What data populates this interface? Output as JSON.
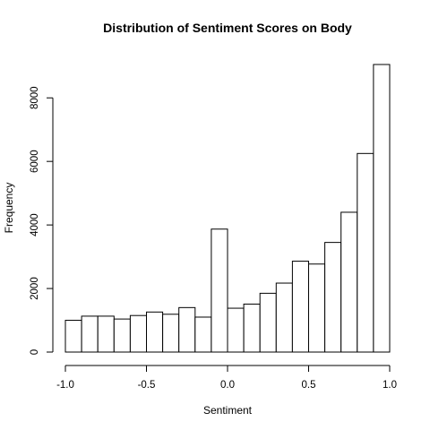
{
  "chart_data": {
    "type": "histogram",
    "title": "Distribution of Sentiment Scores on Body",
    "xlabel": "Sentiment",
    "ylabel": "Frequency",
    "bin_edges": [
      -1.0,
      -0.9,
      -0.8,
      -0.7,
      -0.6,
      -0.5,
      -0.4,
      -0.3,
      -0.2,
      -0.1,
      0.0,
      0.1,
      0.2,
      0.3,
      0.4,
      0.5,
      0.6,
      0.7,
      0.8,
      0.9,
      1.0
    ],
    "values": [
      1000,
      1130,
      1130,
      1040,
      1150,
      1260,
      1190,
      1400,
      1100,
      3870,
      1380,
      1510,
      1850,
      2170,
      2860,
      2770,
      3450,
      4400,
      6250,
      9050
    ],
    "xlim": [
      -1.0,
      1.0
    ],
    "ylim": [
      0,
      9050
    ],
    "x_ticks": [
      {
        "value": -1.0,
        "label": "-1.0"
      },
      {
        "value": -0.5,
        "label": "-0.5"
      },
      {
        "value": 0.0,
        "label": "0.0"
      },
      {
        "value": 0.5,
        "label": "0.5"
      },
      {
        "value": 1.0,
        "label": "1.0"
      }
    ],
    "y_ticks": [
      {
        "value": 0,
        "label": "0"
      },
      {
        "value": 2000,
        "label": "2000"
      },
      {
        "value": 4000,
        "label": "4000"
      },
      {
        "value": 6000,
        "label": "6000"
      },
      {
        "value": 8000,
        "label": "8000"
      }
    ],
    "grid": false,
    "bar_fill": "#ffffff",
    "bar_stroke": "#000000"
  }
}
